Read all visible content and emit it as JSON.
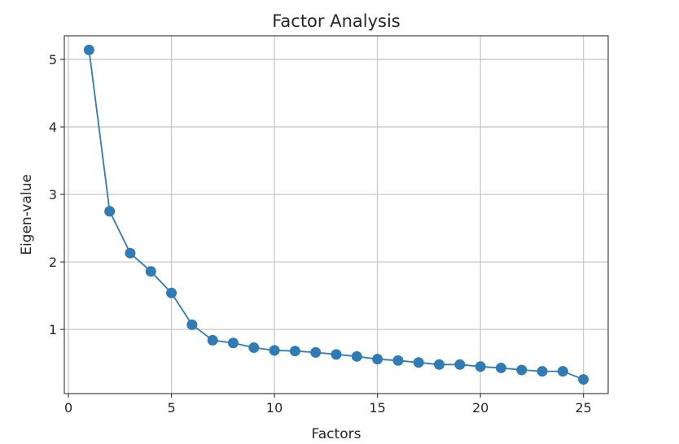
{
  "chart_data": {
    "type": "line",
    "title": "Factor Analysis",
    "xlabel": "Factors",
    "ylabel": "Eigen-value",
    "xlim": [
      -0.2,
      26.2
    ],
    "ylim": [
      0.05,
      5.35
    ],
    "xticks": [
      0,
      5,
      10,
      15,
      20,
      25
    ],
    "yticks": [
      1,
      2,
      3,
      4,
      5
    ],
    "grid": true,
    "marker": "circle",
    "colors": {
      "series": "#2f7bb6"
    },
    "series": [
      {
        "x": [
          1,
          2,
          3,
          4,
          5,
          6,
          7,
          8,
          9,
          10,
          11,
          12,
          13,
          14,
          15,
          16,
          17,
          18,
          19,
          20,
          21,
          22,
          23,
          24,
          25
        ],
        "values": [
          5.14,
          2.75,
          2.13,
          1.86,
          1.54,
          1.07,
          0.84,
          0.8,
          0.73,
          0.69,
          0.68,
          0.66,
          0.63,
          0.6,
          0.56,
          0.54,
          0.51,
          0.48,
          0.48,
          0.45,
          0.43,
          0.4,
          0.38,
          0.38,
          0.26
        ]
      }
    ]
  }
}
